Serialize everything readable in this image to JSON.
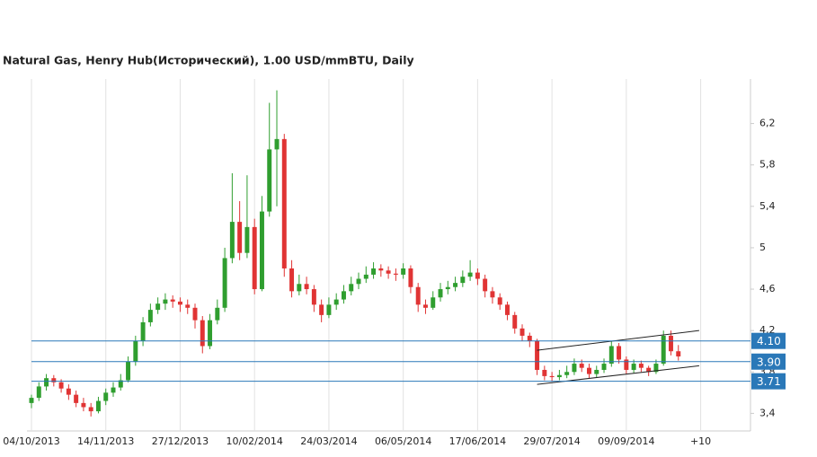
{
  "chart_data": {
    "type": "candlestick",
    "title": "Natural Gas, Henry Hub(Исторический), 1.00 USD/mmBTU, Daily",
    "xlim": [
      0,
      96.7
    ],
    "xticks": [
      {
        "value": 0,
        "label": "04/10/2013"
      },
      {
        "value": 10,
        "label": "14/11/2013"
      },
      {
        "value": 20,
        "label": "27/12/2013"
      },
      {
        "value": 30,
        "label": "10/02/2014"
      },
      {
        "value": 40,
        "label": "24/03/2014"
      },
      {
        "value": 50,
        "label": "06/05/2014"
      },
      {
        "value": 60,
        "label": "17/06/2014"
      },
      {
        "value": 70,
        "label": "29/07/2014"
      },
      {
        "value": 80,
        "label": "09/09/2014"
      },
      {
        "value": 90,
        "label": "+10"
      }
    ],
    "ylim": [
      3.23,
      6.63
    ],
    "yticks": [
      {
        "value": 3.4,
        "label": "3,4"
      },
      {
        "value": 3.8,
        "label": "3,8"
      },
      {
        "value": 4.2,
        "label": "4,2"
      },
      {
        "value": 4.6,
        "label": "4,6"
      },
      5,
      {
        "value": 5.4,
        "label": "5,4"
      },
      {
        "value": 5.8,
        "label": "5,8"
      },
      {
        "value": 6.2,
        "label": "6,2"
      }
    ],
    "grid": true,
    "up_color": "#2f9e2f",
    "down_color": "#e03434",
    "ohlc": [
      [
        3.5,
        3.58,
        3.45,
        3.55
      ],
      [
        3.55,
        3.7,
        3.52,
        3.66
      ],
      [
        3.66,
        3.78,
        3.62,
        3.74
      ],
      [
        3.74,
        3.77,
        3.66,
        3.7
      ],
      [
        3.7,
        3.73,
        3.6,
        3.64
      ],
      [
        3.64,
        3.68,
        3.53,
        3.58
      ],
      [
        3.58,
        3.62,
        3.46,
        3.5
      ],
      [
        3.5,
        3.55,
        3.42,
        3.46
      ],
      [
        3.46,
        3.5,
        3.37,
        3.42
      ],
      [
        3.42,
        3.56,
        3.4,
        3.52
      ],
      [
        3.52,
        3.64,
        3.48,
        3.6
      ],
      [
        3.6,
        3.7,
        3.56,
        3.65
      ],
      [
        3.65,
        3.78,
        3.62,
        3.72
      ],
      [
        3.72,
        3.95,
        3.7,
        3.9
      ],
      [
        3.9,
        4.15,
        3.86,
        4.1
      ],
      [
        4.1,
        4.33,
        4.05,
        4.28
      ],
      [
        4.28,
        4.46,
        4.24,
        4.4
      ],
      [
        4.4,
        4.52,
        4.36,
        4.46
      ],
      [
        4.46,
        4.56,
        4.4,
        4.5
      ],
      [
        4.5,
        4.54,
        4.42,
        4.48
      ],
      [
        4.48,
        4.52,
        4.38,
        4.45
      ],
      [
        4.45,
        4.5,
        4.36,
        4.42
      ],
      [
        4.42,
        4.46,
        4.22,
        4.3
      ],
      [
        4.3,
        4.34,
        3.98,
        4.05
      ],
      [
        4.05,
        4.36,
        4.02,
        4.3
      ],
      [
        4.3,
        4.5,
        4.26,
        4.42
      ],
      [
        4.42,
        5.0,
        4.38,
        4.9
      ],
      [
        4.9,
        5.72,
        4.85,
        5.25
      ],
      [
        5.25,
        5.45,
        4.88,
        4.95
      ],
      [
        4.95,
        5.7,
        4.9,
        5.2
      ],
      [
        5.2,
        5.28,
        4.55,
        4.6
      ],
      [
        4.6,
        5.5,
        4.58,
        5.35
      ],
      [
        5.35,
        6.4,
        5.3,
        5.95
      ],
      [
        5.95,
        6.52,
        5.4,
        6.05
      ],
      [
        6.05,
        6.1,
        4.72,
        4.8
      ],
      [
        4.8,
        4.88,
        4.52,
        4.58
      ],
      [
        4.58,
        4.74,
        4.54,
        4.65
      ],
      [
        4.65,
        4.72,
        4.55,
        4.6
      ],
      [
        4.6,
        4.64,
        4.38,
        4.45
      ],
      [
        4.45,
        4.5,
        4.28,
        4.35
      ],
      [
        4.35,
        4.52,
        4.32,
        4.45
      ],
      [
        4.45,
        4.56,
        4.4,
        4.5
      ],
      [
        4.5,
        4.64,
        4.46,
        4.58
      ],
      [
        4.58,
        4.72,
        4.54,
        4.65
      ],
      [
        4.65,
        4.76,
        4.6,
        4.7
      ],
      [
        4.7,
        4.82,
        4.66,
        4.74
      ],
      [
        4.74,
        4.86,
        4.7,
        4.8
      ],
      [
        4.8,
        4.84,
        4.72,
        4.78
      ],
      [
        4.78,
        4.82,
        4.7,
        4.75
      ],
      [
        4.75,
        4.8,
        4.68,
        4.74
      ],
      [
        4.74,
        4.85,
        4.7,
        4.8
      ],
      [
        4.8,
        4.83,
        4.56,
        4.62
      ],
      [
        4.62,
        4.66,
        4.38,
        4.45
      ],
      [
        4.45,
        4.5,
        4.36,
        4.42
      ],
      [
        4.42,
        4.58,
        4.4,
        4.52
      ],
      [
        4.52,
        4.66,
        4.48,
        4.6
      ],
      [
        4.6,
        4.68,
        4.55,
        4.62
      ],
      [
        4.62,
        4.72,
        4.58,
        4.66
      ],
      [
        4.66,
        4.78,
        4.62,
        4.72
      ],
      [
        4.72,
        4.88,
        4.68,
        4.76
      ],
      [
        4.76,
        4.8,
        4.64,
        4.7
      ],
      [
        4.7,
        4.74,
        4.52,
        4.58
      ],
      [
        4.58,
        4.62,
        4.46,
        4.52
      ],
      [
        4.52,
        4.56,
        4.4,
        4.45
      ],
      [
        4.45,
        4.48,
        4.3,
        4.35
      ],
      [
        4.35,
        4.38,
        4.17,
        4.22
      ],
      [
        4.22,
        4.26,
        4.1,
        4.15
      ],
      [
        4.15,
        4.18,
        4.04,
        4.1
      ],
      [
        4.1,
        4.12,
        3.77,
        3.82
      ],
      [
        3.82,
        3.86,
        3.72,
        3.76
      ],
      [
        3.76,
        3.8,
        3.71,
        3.75
      ],
      [
        3.75,
        3.82,
        3.72,
        3.77
      ],
      [
        3.77,
        3.86,
        3.74,
        3.8
      ],
      [
        3.8,
        3.93,
        3.77,
        3.88
      ],
      [
        3.88,
        3.92,
        3.8,
        3.84
      ],
      [
        3.84,
        3.88,
        3.74,
        3.78
      ],
      [
        3.78,
        3.86,
        3.75,
        3.82
      ],
      [
        3.82,
        3.93,
        3.79,
        3.88
      ],
      [
        3.88,
        4.1,
        3.85,
        4.05
      ],
      [
        4.05,
        4.08,
        3.88,
        3.92
      ],
      [
        3.92,
        3.95,
        3.78,
        3.82
      ],
      [
        3.82,
        3.92,
        3.79,
        3.88
      ],
      [
        3.88,
        3.91,
        3.8,
        3.84
      ],
      [
        3.84,
        3.86,
        3.76,
        3.8
      ],
      [
        3.8,
        3.92,
        3.78,
        3.88
      ],
      [
        3.88,
        4.2,
        3.86,
        4.15
      ],
      [
        4.15,
        4.2,
        3.96,
        4.0
      ],
      [
        4.0,
        4.06,
        3.91,
        3.95
      ]
    ],
    "levels": [
      {
        "value": 4.1,
        "label": "4.10"
      },
      {
        "value": 3.9,
        "label": "3.90"
      },
      {
        "value": 3.71,
        "label": "3.71"
      }
    ],
    "level_color": "#2a78b8",
    "trend_lines": [
      {
        "x": [
          68,
          89.8
        ],
        "y": [
          4.01,
          4.2
        ]
      },
      {
        "x": [
          68,
          89.8
        ],
        "y": [
          3.68,
          3.86
        ]
      }
    ]
  }
}
